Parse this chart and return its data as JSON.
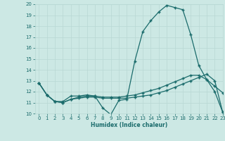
{
  "xlabel": "Humidex (Indice chaleur)",
  "xlim": [
    -0.5,
    23
  ],
  "ylim": [
    10,
    20
  ],
  "yticks": [
    10,
    11,
    12,
    13,
    14,
    15,
    16,
    17,
    18,
    19,
    20
  ],
  "xticks": [
    0,
    1,
    2,
    3,
    4,
    5,
    6,
    7,
    8,
    9,
    10,
    11,
    12,
    13,
    14,
    15,
    16,
    17,
    18,
    19,
    20,
    21,
    22,
    23
  ],
  "bg_color": "#cce8e4",
  "line_color": "#1a6b6b",
  "grid_color": "#b8d8d4",
  "series1_x": [
    0,
    1,
    2,
    3,
    4,
    5,
    6,
    7,
    8,
    9,
    10,
    11,
    12,
    13,
    14,
    15,
    16,
    17,
    18,
    19,
    20,
    21,
    22,
    23
  ],
  "series1_y": [
    12.8,
    11.7,
    11.1,
    11.1,
    11.6,
    11.6,
    11.7,
    11.6,
    10.5,
    9.9,
    11.2,
    11.3,
    14.8,
    17.5,
    18.5,
    19.3,
    19.9,
    19.7,
    19.5,
    17.2,
    14.4,
    13.1,
    12.5,
    11.9
  ],
  "series2_x": [
    0,
    1,
    2,
    3,
    4,
    5,
    6,
    7,
    8,
    9,
    10,
    11,
    12,
    13,
    14,
    15,
    16,
    17,
    18,
    19,
    20,
    21,
    22,
    23
  ],
  "series2_y": [
    12.8,
    11.7,
    11.1,
    11.0,
    11.3,
    11.4,
    11.5,
    11.5,
    11.4,
    11.4,
    11.4,
    11.4,
    11.5,
    11.6,
    11.7,
    11.9,
    12.1,
    12.4,
    12.7,
    13.0,
    13.3,
    13.6,
    13.0,
    10.1
  ],
  "series3_x": [
    0,
    1,
    2,
    3,
    4,
    5,
    6,
    7,
    8,
    9,
    10,
    11,
    12,
    13,
    14,
    15,
    16,
    17,
    18,
    19,
    20,
    21,
    22,
    23
  ],
  "series3_y": [
    12.8,
    11.7,
    11.1,
    11.0,
    11.3,
    11.5,
    11.6,
    11.6,
    11.5,
    11.5,
    11.5,
    11.6,
    11.7,
    11.9,
    12.1,
    12.3,
    12.6,
    12.9,
    13.2,
    13.5,
    13.5,
    13.1,
    12.0,
    10.1
  ]
}
